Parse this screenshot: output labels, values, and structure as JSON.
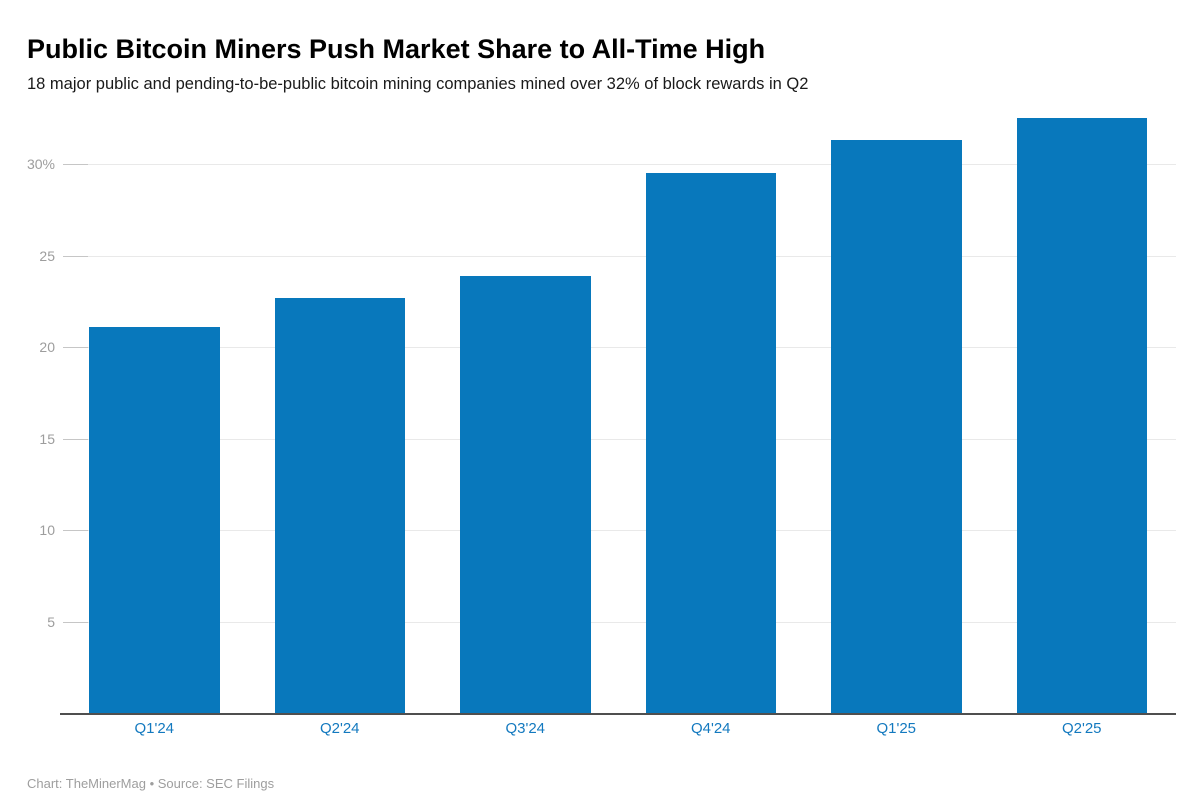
{
  "header": {
    "title": "Public Bitcoin Miners Push Market Share to All-Time High",
    "subtitle": "18 major public and pending-to-be-public bitcoin mining companies mined over 32% of block rewards in Q2"
  },
  "footer": {
    "text": "Chart: TheMinerMag • Source: SEC Filings"
  },
  "colors": {
    "bar": "#0878bc",
    "x_label": "#1379bf",
    "gridline": "#e9e9e9",
    "tick": "#c6c6c6",
    "y_label": "#9d9d9d",
    "axis_line": "#4f4f4f",
    "title": "#000000",
    "subtitle": "#1a1a1a",
    "footer": "#9e9e9e"
  },
  "chart_data": {
    "type": "bar",
    "title": "Public Bitcoin Miners Push Market Share to All-Time High",
    "subtitle": "18 major public and pending-to-be-public bitcoin mining companies mined over 32% of block rewards in Q2",
    "categories": [
      "Q1'24",
      "Q2'24",
      "Q3'24",
      "Q4'24",
      "Q1'25",
      "Q2'25"
    ],
    "values": [
      21.1,
      22.7,
      23.9,
      29.5,
      31.3,
      32.5
    ],
    "unit": "%",
    "xlabel": "",
    "ylabel": "",
    "ylim": [
      0,
      33
    ],
    "yticks": [
      {
        "value": 30,
        "label": "30%"
      },
      {
        "value": 25,
        "label": "25"
      },
      {
        "value": 20,
        "label": "20"
      },
      {
        "value": 15,
        "label": "15"
      },
      {
        "value": 10,
        "label": "10"
      },
      {
        "value": 5,
        "label": "5"
      }
    ],
    "grid": "horizontal",
    "legend": "none",
    "bar_color": "#0878bc",
    "credit": "TheMinerMag",
    "source": "SEC Filings"
  }
}
